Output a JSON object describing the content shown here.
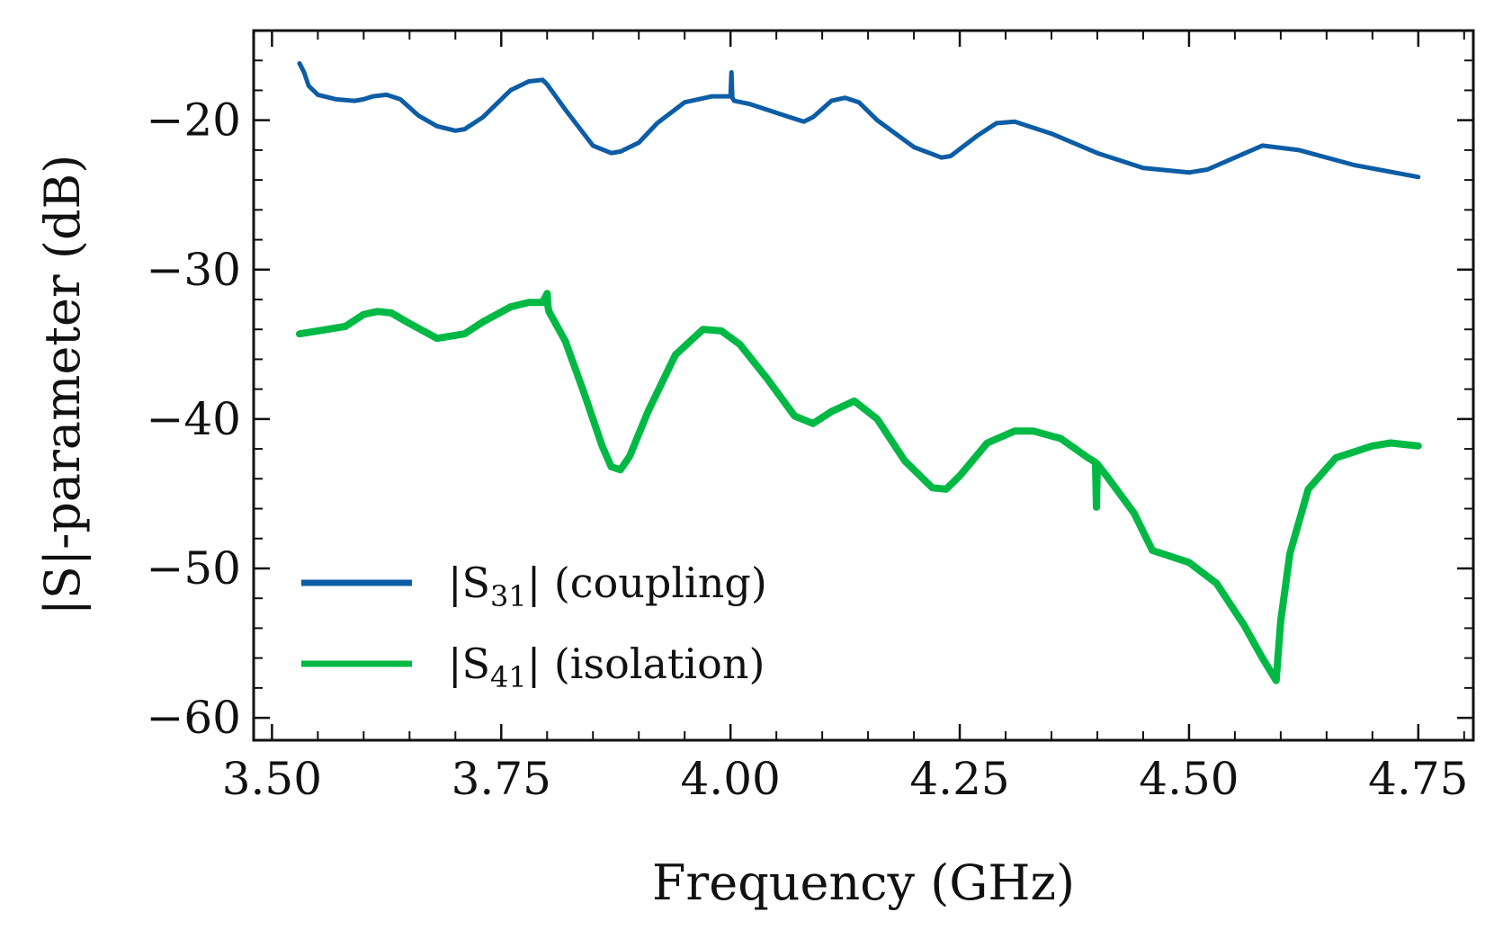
{
  "chart_data": {
    "type": "line",
    "title": "",
    "xlabel": "Frequency (GHz)",
    "ylabel": "|S|-parameter (dB)",
    "xlim": [
      3.48,
      4.81
    ],
    "ylim": [
      -61.5,
      -14
    ],
    "xticks": [
      3.5,
      3.75,
      4.0,
      4.25,
      4.5,
      4.75
    ],
    "xtick_labels": [
      "3.50",
      "3.75",
      "4.00",
      "4.25",
      "4.50",
      "4.75"
    ],
    "yticks": [
      -20,
      -30,
      -40,
      -50,
      -60
    ],
    "ytick_labels": [
      "−20",
      "−30",
      "−40",
      "−50",
      "−60"
    ],
    "grid": false,
    "legend_position": "lower-left",
    "series": [
      {
        "name": "|S31| (coupling)",
        "legend_main": "|S",
        "legend_sub": "31",
        "legend_tail": "| (coupling)",
        "color": "#0c5da5",
        "x": [
          3.53,
          3.535,
          3.54,
          3.55,
          3.57,
          3.59,
          3.6,
          3.61,
          3.625,
          3.64,
          3.66,
          3.68,
          3.7,
          3.71,
          3.73,
          3.76,
          3.78,
          3.795,
          3.8,
          3.82,
          3.85,
          3.87,
          3.88,
          3.9,
          3.92,
          3.95,
          3.98,
          4.0,
          4.001,
          4.002,
          4.004,
          4.02,
          4.06,
          4.08,
          4.09,
          4.11,
          4.125,
          4.14,
          4.16,
          4.2,
          4.23,
          4.24,
          4.27,
          4.29,
          4.31,
          4.35,
          4.4,
          4.45,
          4.5,
          4.52,
          4.55,
          4.58,
          4.62,
          4.68,
          4.75
        ],
        "y": [
          -16.2,
          -16.8,
          -17.7,
          -18.3,
          -18.6,
          -18.7,
          -18.6,
          -18.4,
          -18.3,
          -18.6,
          -19.7,
          -20.4,
          -20.7,
          -20.6,
          -19.8,
          -18.0,
          -17.4,
          -17.3,
          -17.6,
          -19.3,
          -21.7,
          -22.2,
          -22.1,
          -21.5,
          -20.2,
          -18.8,
          -18.4,
          -18.4,
          -16.8,
          -18.5,
          -18.7,
          -18.9,
          -19.7,
          -20.1,
          -19.8,
          -18.7,
          -18.5,
          -18.8,
          -20.0,
          -21.8,
          -22.5,
          -22.4,
          -21.0,
          -20.2,
          -20.1,
          -20.9,
          -22.2,
          -23.2,
          -23.5,
          -23.3,
          -22.5,
          -21.7,
          -22.0,
          -23.0,
          -23.8
        ]
      },
      {
        "name": "|S41| (isolation)",
        "legend_main": "|S",
        "legend_sub": "41",
        "legend_tail": "| (isolation)",
        "color": "#00b945",
        "x": [
          3.53,
          3.55,
          3.58,
          3.6,
          3.615,
          3.63,
          3.65,
          3.68,
          3.71,
          3.73,
          3.76,
          3.78,
          3.795,
          3.8,
          3.801,
          3.802,
          3.82,
          3.84,
          3.86,
          3.87,
          3.88,
          3.89,
          3.91,
          3.94,
          3.97,
          3.99,
          4.01,
          4.04,
          4.07,
          4.09,
          4.11,
          4.135,
          4.16,
          4.19,
          4.22,
          4.235,
          4.25,
          4.28,
          4.31,
          4.33,
          4.36,
          4.39,
          4.398,
          4.399,
          4.4,
          4.401,
          4.41,
          4.44,
          4.46,
          4.5,
          4.53,
          4.56,
          4.58,
          4.595,
          4.6,
          4.61,
          4.63,
          4.66,
          4.7,
          4.72,
          4.75
        ],
        "y": [
          -34.3,
          -34.1,
          -33.8,
          -33.0,
          -32.8,
          -32.9,
          -33.6,
          -34.6,
          -34.3,
          -33.5,
          -32.5,
          -32.2,
          -32.2,
          -31.6,
          -32.5,
          -32.8,
          -34.8,
          -38.2,
          -41.8,
          -43.2,
          -43.4,
          -42.5,
          -39.5,
          -35.7,
          -34.0,
          -34.1,
          -35.0,
          -37.3,
          -39.8,
          -40.3,
          -39.5,
          -38.8,
          -40.0,
          -42.8,
          -44.6,
          -44.7,
          -43.8,
          -41.6,
          -40.8,
          -40.8,
          -41.3,
          -42.6,
          -42.9,
          -45.9,
          -43.0,
          -43.1,
          -43.8,
          -46.3,
          -48.8,
          -49.6,
          -51.0,
          -53.8,
          -56.0,
          -57.5,
          -53.5,
          -49.0,
          -44.7,
          -42.6,
          -41.8,
          -41.6,
          -41.8
        ]
      }
    ]
  }
}
